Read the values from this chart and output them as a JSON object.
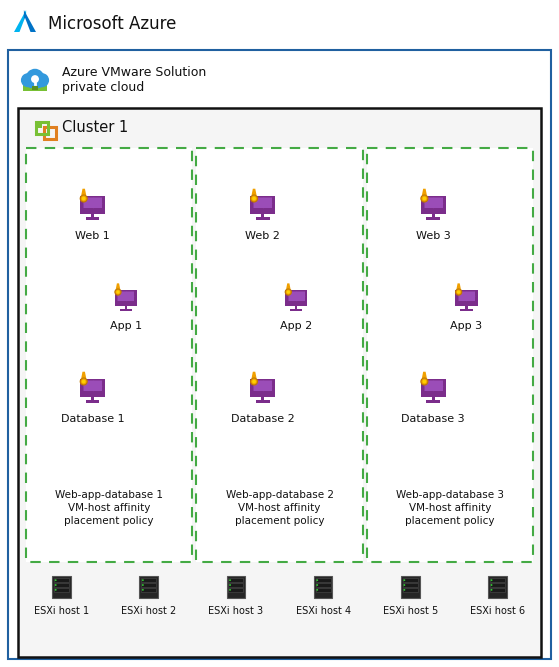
{
  "title": "Microsoft Azure",
  "subtitle_line1": "Azure VMware Solution",
  "subtitle_line2": "private cloud",
  "cluster_label": "Cluster 1",
  "bg_color": "#ffffff",
  "outer_border_color": "#2060a0",
  "cluster_border_color": "#111111",
  "dashed_border_color": "#44aa44",
  "esxi_hosts": [
    "ESXi host 1",
    "ESXi host 2",
    "ESXi host 3",
    "ESXi host 4",
    "ESXi host 5",
    "ESXi host 6"
  ],
  "groups": [
    {
      "web": "Web 1",
      "app": "App 1",
      "db": "Database 1",
      "policy": "Web-app-database 1\nVM-host affinity\nplacement policy"
    },
    {
      "web": "Web 2",
      "app": "App 2",
      "db": "Database 2",
      "policy": "Web-app-database 2\nVM-host affinity\nplacement policy"
    },
    {
      "web": "Web 3",
      "app": "App 3",
      "db": "Database 3",
      "policy": "Web-app-database 3\nVM-host affinity\nplacement policy"
    }
  ],
  "monitor_body_color": "#7b2d8b",
  "monitor_screen_color": "#9b3dbb",
  "medal_gold": "#f0a000",
  "medal_yellow": "#ffd000",
  "server_color": "#222222",
  "server_dark": "#1a1a1a",
  "server_light": "#44cc44",
  "azure_blue1": "#0072c6",
  "azure_blue2": "#00b4f0",
  "azure_green": "#78c034",
  "cluster_green": "#78c034",
  "cluster_orange": "#e08020"
}
